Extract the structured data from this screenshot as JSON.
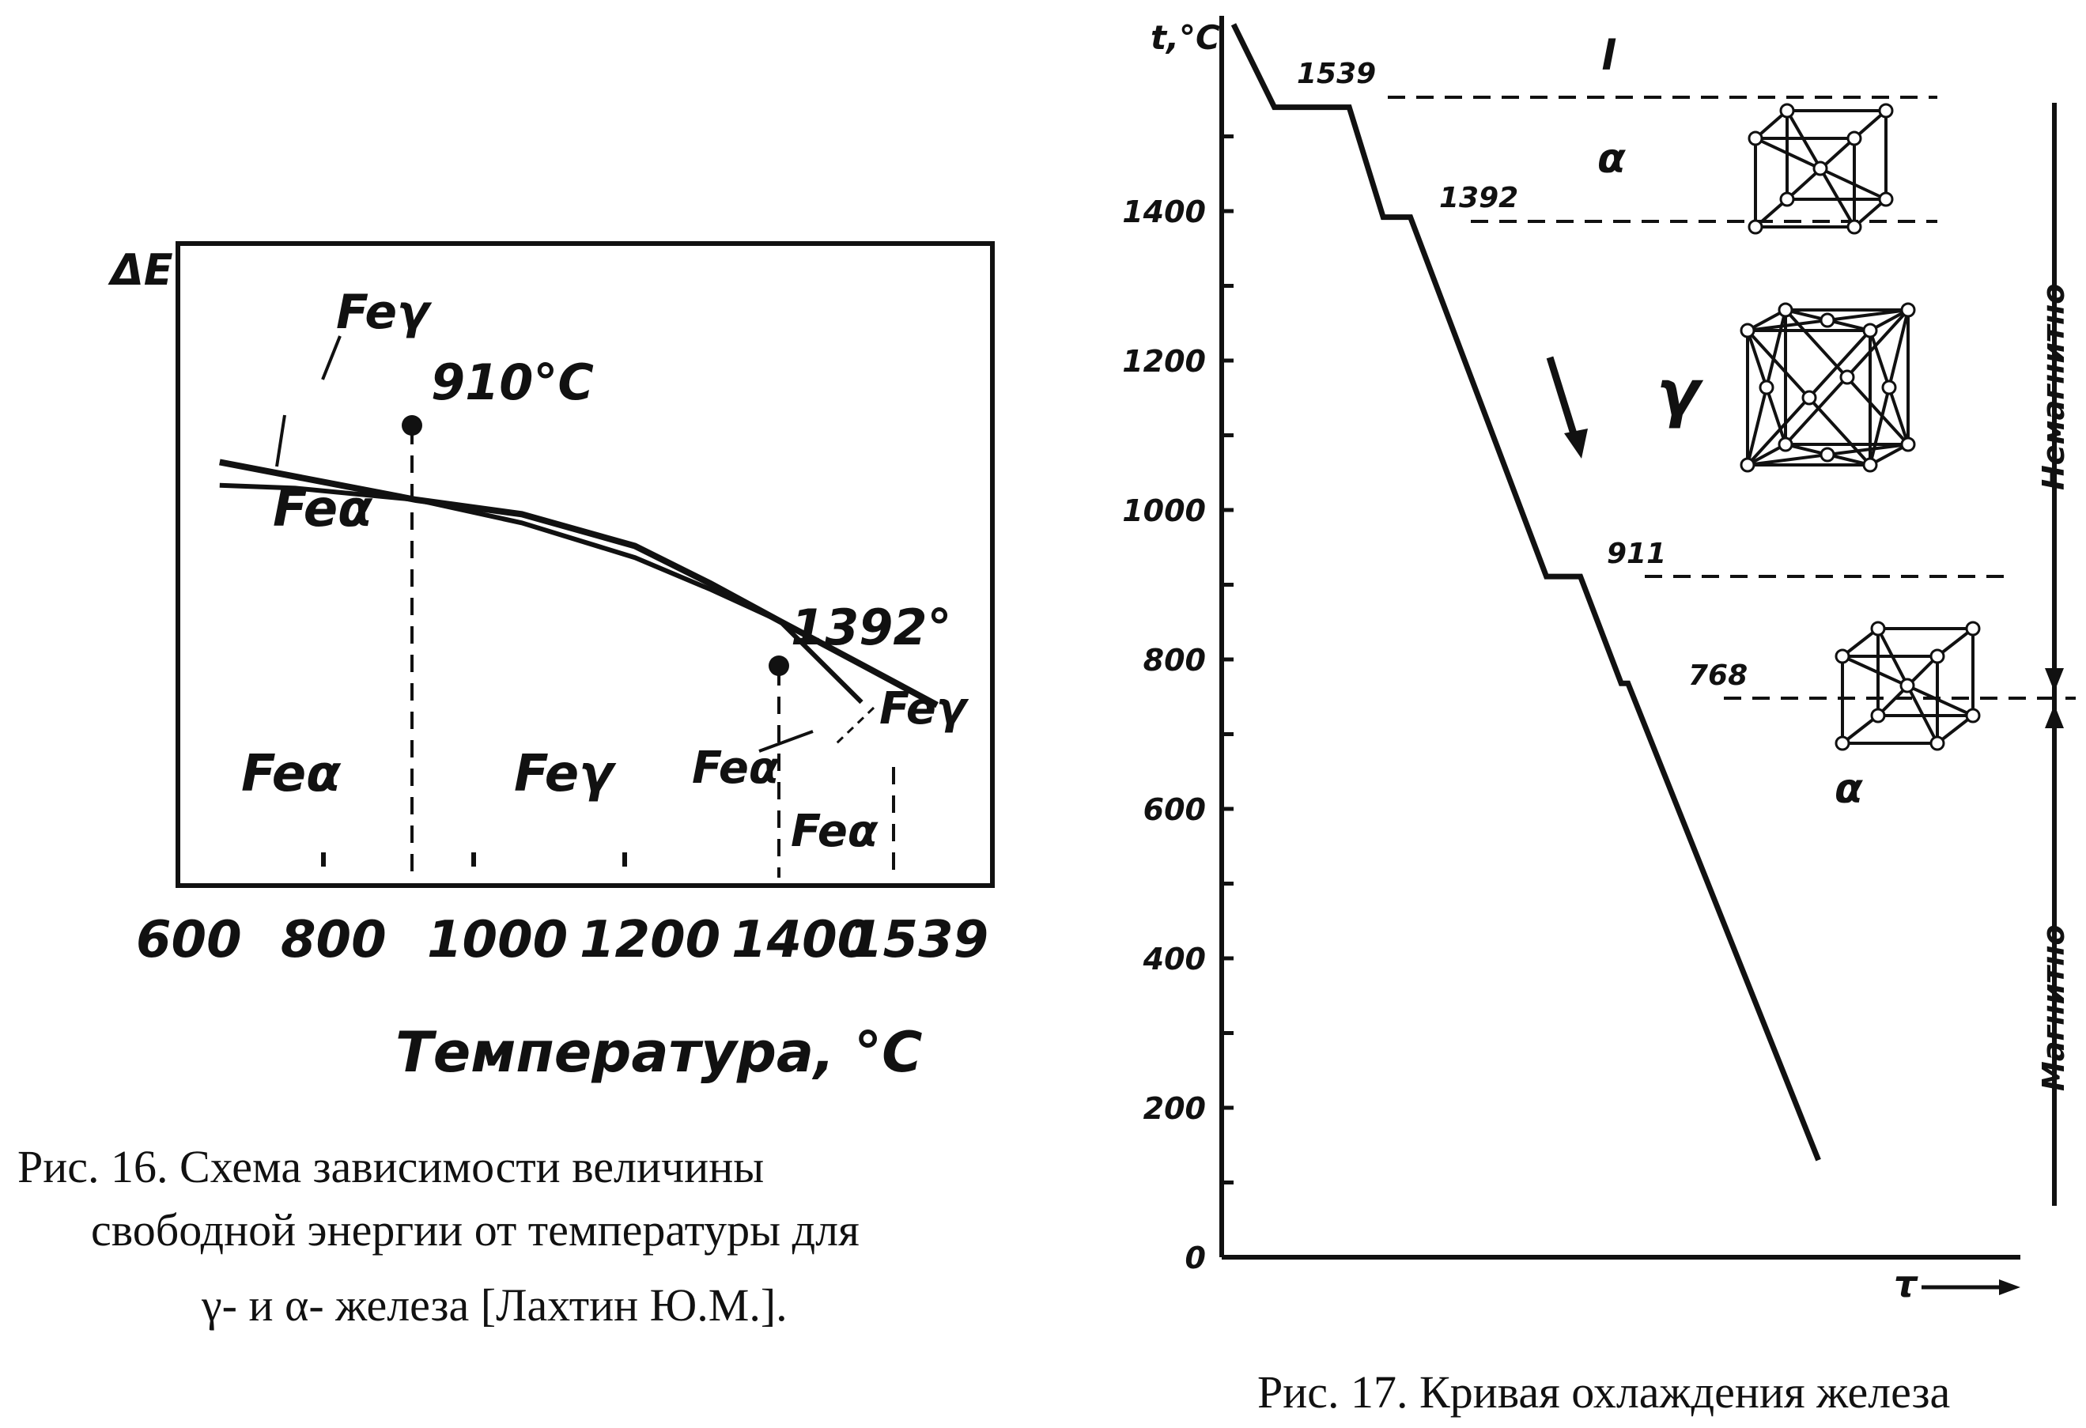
{
  "figure16": {
    "caption_line1": "Рис. 16. Схема зависимости величины",
    "caption_line2": "свободной энергии от температуры для",
    "caption_line3": "γ- и α- железа [Лахтин Ю.М.].",
    "chart_data": {
      "type": "line",
      "ylabel": "ΔE",
      "xlabel": "Температура, °C",
      "xlim": [
        600,
        1620
      ],
      "ylim": [
        0,
        1
      ],
      "xticks": [
        "600",
        "800",
        "1000",
        "1200",
        "1400",
        "1539"
      ],
      "series": [
        {
          "name": "Feγ",
          "x": [
            650,
            750,
            910,
            1050,
            1200,
            1300,
            1392,
            1500,
            1600
          ],
          "y": [
            0.89,
            0.84,
            0.76,
            0.71,
            0.6,
            0.47,
            0.34,
            0.19,
            0.05
          ]
        },
        {
          "name": "Feα",
          "x": [
            650,
            750,
            910,
            1050,
            1200,
            1300,
            1392,
            1500
          ],
          "y": [
            0.81,
            0.8,
            0.76,
            0.68,
            0.56,
            0.45,
            0.34,
            0.06
          ]
        }
      ],
      "annotations": {
        "point1": "910°C",
        "point2": "1392°",
        "label_fe_gamma_top": "Feγ",
        "label_fe_alpha_top": "Feα",
        "region_alpha": "Feα",
        "region_gamma": "Feγ",
        "label_fe_alpha_right": "Feα",
        "label_fe_gamma_right": "Feγ",
        "label_fe_alpha_bottom": "Feα"
      }
    }
  },
  "figure17": {
    "caption": "Рис. 17. Кривая охлаждения железа",
    "chart_data": {
      "type": "line",
      "ylabel": "t,°C",
      "xlabel": "τ",
      "ylim": [
        0,
        1600
      ],
      "yticks": [
        "0",
        "200",
        "400",
        "600",
        "800",
        "1000",
        "1200",
        "1400"
      ],
      "series": [
        {
          "name": "",
          "x": [
            0.0,
            0.06,
            0.17,
            0.22,
            0.26,
            0.46,
            0.51,
            0.57,
            0.58,
            0.86
          ],
          "y": [
            1650,
            1539,
            1539,
            1392,
            1392,
            911,
            911,
            768,
            768,
            130
          ]
        }
      ],
      "plateaus": [
        {
          "label": "1539",
          "value": 1539
        },
        {
          "label": "1392",
          "value": 1392
        },
        {
          "label": "911",
          "value": 911
        },
        {
          "label": "768",
          "value": 768
        }
      ],
      "phase_labels": {
        "liquid": "l",
        "alpha_high": "α",
        "gamma": "γ",
        "alpha_low": "α"
      },
      "side_labels": {
        "upper": "Немагнитно",
        "lower": "Магнитно"
      }
    }
  }
}
